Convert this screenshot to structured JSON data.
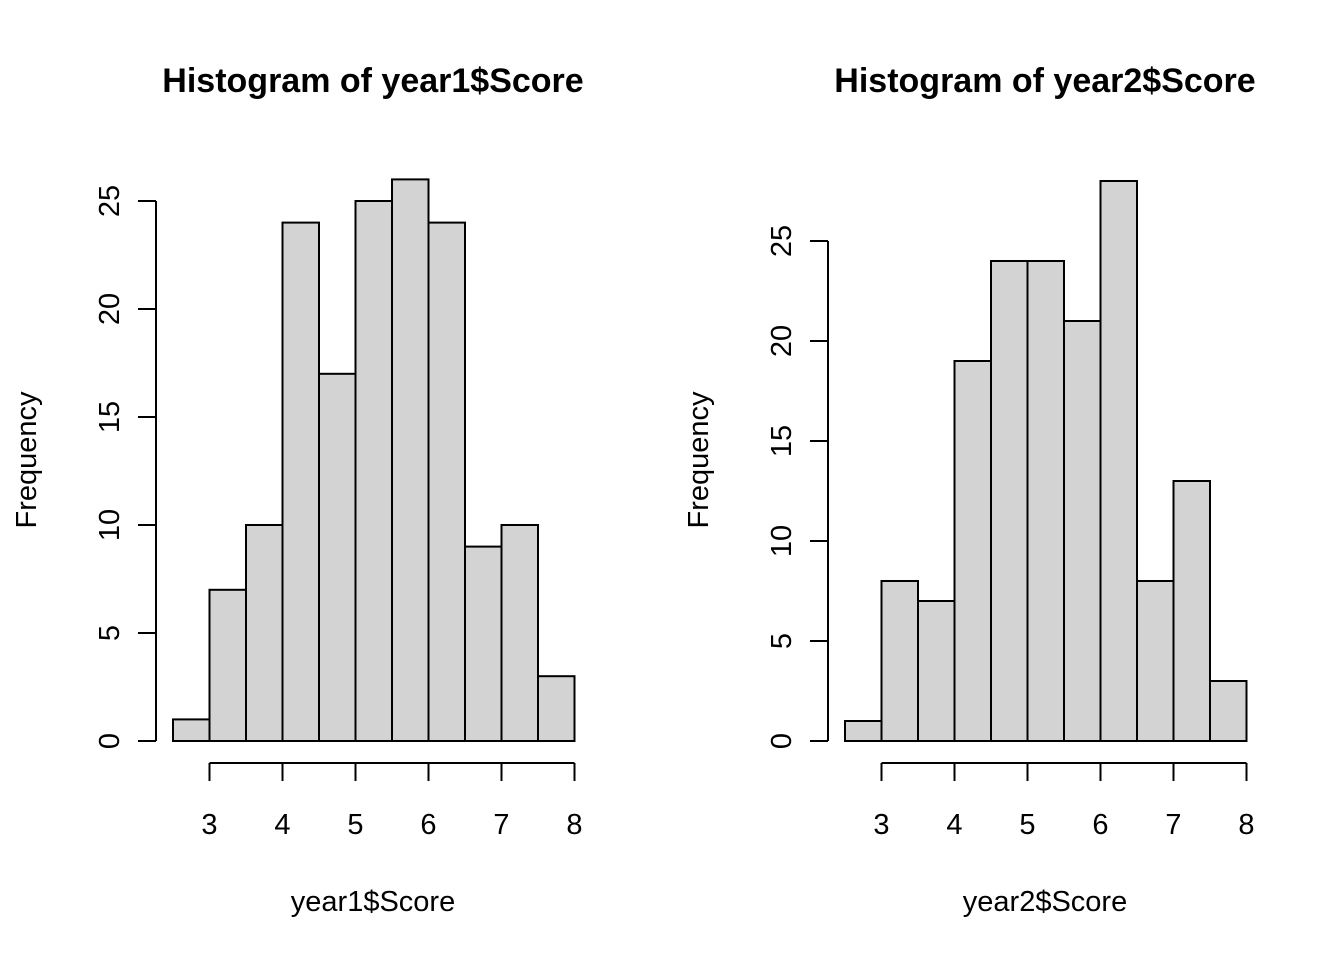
{
  "chart_data": [
    {
      "type": "bar",
      "title": "Histogram of year1$Score",
      "xlabel": "year1$Score",
      "ylabel": "Frequency",
      "bin_width": 0.5,
      "bin_edges": [
        2.5,
        3.0,
        3.5,
        4.0,
        4.5,
        5.0,
        5.5,
        6.0,
        6.5,
        7.0,
        7.5,
        8.0
      ],
      "values": [
        1,
        7,
        10,
        24,
        17,
        25,
        26,
        24,
        9,
        10,
        3
      ],
      "xlim": [
        2.5,
        8
      ],
      "ylim": [
        0,
        26
      ],
      "x_ticks": [
        "3",
        "4",
        "5",
        "6",
        "7",
        "8"
      ],
      "y_ticks": [
        "0",
        "5",
        "10",
        "15",
        "20",
        "25"
      ],
      "grid": false,
      "bar_color": "#d3d3d3"
    },
    {
      "type": "bar",
      "title": "Histogram of year2$Score",
      "xlabel": "year2$Score",
      "ylabel": "Frequency",
      "bin_width": 0.5,
      "bin_edges": [
        2.5,
        3.0,
        3.5,
        4.0,
        4.5,
        5.0,
        5.5,
        6.0,
        6.5,
        7.0,
        7.5,
        8.0
      ],
      "values": [
        1,
        8,
        7,
        19,
        24,
        24,
        21,
        28,
        8,
        13,
        3
      ],
      "xlim": [
        2.5,
        8
      ],
      "ylim": [
        0,
        28
      ],
      "x_ticks": [
        "3",
        "4",
        "5",
        "6",
        "7",
        "8"
      ],
      "y_ticks": [
        "0",
        "5",
        "10",
        "15",
        "20",
        "25"
      ],
      "grid": false,
      "bar_color": "#d3d3d3"
    }
  ]
}
